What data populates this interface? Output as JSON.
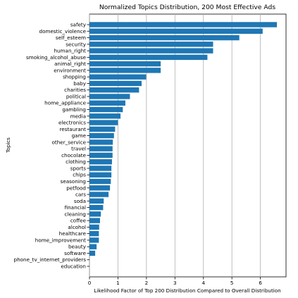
{
  "chart_data": {
    "type": "bar",
    "orientation": "horizontal",
    "title": "Normalized Topics Distribution, 200 Most Effective Ads",
    "xlabel": "Likelihood Factor of Top 200 Distribution Compared to Overall Distribution",
    "ylabel": "Topics",
    "xlim": [
      0,
      6.9
    ],
    "xticks": [
      0,
      1,
      2,
      3,
      4,
      5,
      6
    ],
    "grid": "x",
    "legend": "none",
    "bar_color": "#1f77b4",
    "categories": [
      "safety",
      "domestic_violence",
      "self_esteem",
      "security",
      "human_right",
      "smoking_alcohol_abuse",
      "animal_right",
      "environment",
      "shopping",
      "baby",
      "charities",
      "political",
      "home_appliance",
      "gambling",
      "media",
      "electronics",
      "restaurant",
      "game",
      "other_service",
      "travel",
      "chocolate",
      "clothing",
      "sports",
      "chips",
      "seasoning",
      "petfood",
      "cars",
      "soda",
      "financial",
      "cleaning",
      "coffee",
      "alcohol",
      "healthcare",
      "home_improvement",
      "beauty",
      "software",
      "phone_tv_internet_providers",
      "education"
    ],
    "values": [
      6.58,
      6.08,
      5.26,
      4.34,
      4.34,
      4.14,
      2.5,
      2.5,
      1.99,
      1.83,
      1.74,
      1.42,
      1.26,
      1.17,
      1.09,
      1.0,
      0.9,
      0.86,
      0.82,
      0.81,
      0.81,
      0.79,
      0.77,
      0.77,
      0.75,
      0.72,
      0.67,
      0.5,
      0.48,
      0.4,
      0.37,
      0.34,
      0.33,
      0.33,
      0.25,
      0.2,
      0.0,
      0.0
    ]
  }
}
